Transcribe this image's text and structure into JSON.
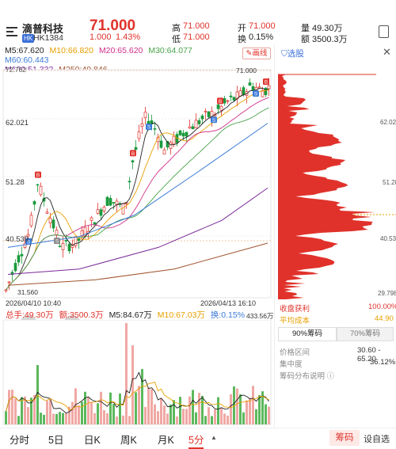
{
  "header": {
    "stock_name": "滴普科技",
    "market_tag": "HK",
    "stock_code": "HK1384",
    "price": "71.000",
    "change": "1.000",
    "change_pct": "1.43%",
    "high_label": "高",
    "high_value": "71.000",
    "low_label": "低",
    "low_value": "71.000",
    "open_label": "开",
    "open_value": "71.000",
    "turnover_label": "换",
    "turnover_value": "0.15%",
    "volume_label": "量",
    "volume_value": "49.30万",
    "amount_label": "额",
    "amount_value": "3500.3万"
  },
  "ma": {
    "m5": "M5:67.620",
    "m10": "M10:66.820",
    "m20": "M20:65.620",
    "m30": "M30:64.077",
    "m60": "M60:60.443",
    "m120": "M120:51.332",
    "m250": "M250:40.846"
  },
  "draw_button": "画线",
  "price_axis": {
    "top": "72.762",
    "p2": "62.021",
    "p3": "51.28",
    "p4": "40.539",
    "low_marker": "31.560",
    "max_marker": "71.000"
  },
  "dates": {
    "start": "2026/04/10 10:40",
    "end": "2026/04/13 16:10"
  },
  "volume_row": {
    "total": "总手:49.30万",
    "amount": "额:3500.3万",
    "m5": "M5:84.67万",
    "m10": "M10:67.03万",
    "turnover": "换:0.15%",
    "max": "433.56万"
  },
  "right_panel": {
    "select_label": "选股",
    "axis_top": "62.021",
    "axis_mid": "51.28",
    "axis_low": "40.539",
    "axis_bottom": "29.798",
    "profit_label": "收盘获利",
    "profit_value": "100.00%",
    "avg_cost_label": "平均成本",
    "avg_cost_value": "44.90",
    "tab_90": "90%筹码",
    "tab_70": "70%筹码",
    "range_label": "价格区间",
    "range_value": "30.60 - 65.20",
    "concentration_label": "集中度",
    "concentration_value": "36.12%",
    "explain_label": "筹码分布说明"
  },
  "tabs": {
    "t1": "分时",
    "t2": "5日",
    "t3": "日K",
    "t4": "周K",
    "t5": "月K",
    "t6": "5分",
    "chips": "筹码",
    "settings": "设自选"
  },
  "colors": {
    "up": "#e0322b",
    "down": "#1a9a3c",
    "ma5": "#222222",
    "ma10": "#e8a000",
    "ma20": "#d0308a",
    "ma30": "#4aa34a",
    "ma60": "#3b7bd8",
    "ma120": "#7a2a9a",
    "ma250": "#a0522d"
  }
}
